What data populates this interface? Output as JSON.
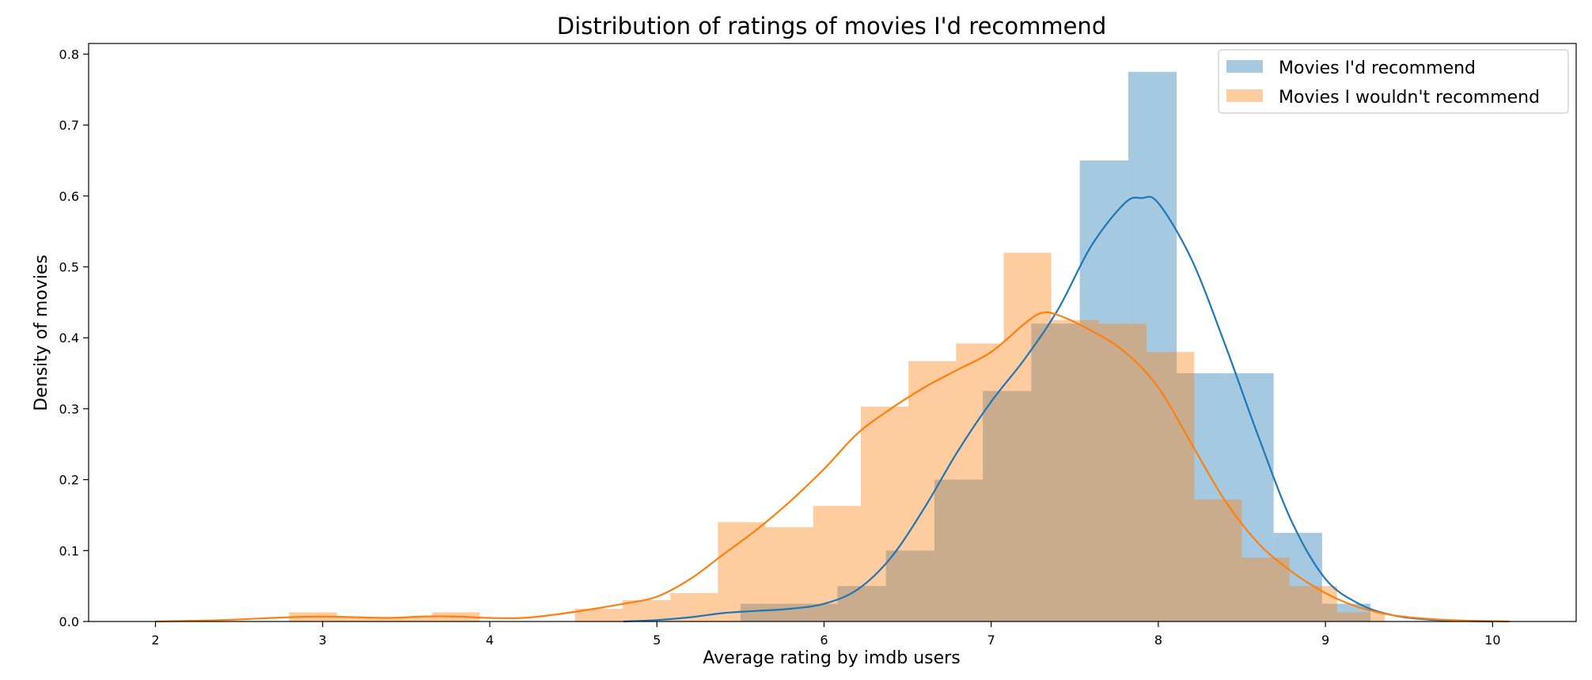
{
  "chart_data": {
    "type": "histogram-kde",
    "title": "Distribution of ratings of movies I'd recommend",
    "xlabel": "Average rating by imdb users",
    "ylabel": "Density of movies",
    "xlim": [
      1.6,
      10.5
    ],
    "ylim": [
      0,
      0.815
    ],
    "xticks": [
      "2",
      "3",
      "4",
      "5",
      "6",
      "7",
      "8",
      "9",
      "10"
    ],
    "yticks": [
      "0.0",
      "0.1",
      "0.2",
      "0.3",
      "0.4",
      "0.5",
      "0.6",
      "0.7",
      "0.8"
    ],
    "legend_position": "top-right",
    "series": [
      {
        "name": "Movies I'd recommend",
        "color": "#1f77b4",
        "bin_start": 5.5,
        "bin_width": 0.29,
        "values": [
          0.025,
          0.025,
          0.05,
          0.1,
          0.2,
          0.325,
          0.42,
          0.65,
          0.775,
          0.35,
          0.35,
          0.125,
          0.025
        ],
        "kde_x": [
          4.8,
          5.0,
          5.2,
          5.4,
          5.6,
          5.8,
          6.0,
          6.2,
          6.4,
          6.6,
          6.8,
          7.0,
          7.2,
          7.4,
          7.6,
          7.8,
          7.9,
          8.0,
          8.2,
          8.4,
          8.6,
          8.8,
          9.0,
          9.2,
          9.4,
          9.6,
          9.8,
          10.0
        ],
        "kde_y": [
          0.0,
          0.002,
          0.006,
          0.012,
          0.015,
          0.018,
          0.025,
          0.045,
          0.09,
          0.16,
          0.24,
          0.31,
          0.37,
          0.44,
          0.53,
          0.59,
          0.597,
          0.59,
          0.51,
          0.39,
          0.26,
          0.14,
          0.06,
          0.025,
          0.009,
          0.003,
          0.001,
          0.0
        ]
      },
      {
        "name": "Movies I wouldn't recommend",
        "color": "#ff7f0e",
        "bin_start": 2.8,
        "bin_width": 0.285,
        "values": [
          0.013,
          0.006,
          0.006,
          0.013,
          0.0,
          0.0,
          0.018,
          0.03,
          0.04,
          0.14,
          0.133,
          0.163,
          0.303,
          0.367,
          0.392,
          0.52,
          0.425,
          0.42,
          0.38,
          0.172,
          0.09,
          0.05,
          0.013
        ],
        "kde_x": [
          2.0,
          2.4,
          2.8,
          3.0,
          3.2,
          3.4,
          3.6,
          3.8,
          4.0,
          4.2,
          4.4,
          4.6,
          4.8,
          5.0,
          5.2,
          5.4,
          5.6,
          5.8,
          6.0,
          6.2,
          6.4,
          6.6,
          6.8,
          7.0,
          7.2,
          7.3,
          7.4,
          7.6,
          7.8,
          8.0,
          8.2,
          8.4,
          8.6,
          8.8,
          9.0,
          9.2,
          9.4,
          9.6,
          9.8,
          10.1
        ],
        "kde_y": [
          0.0,
          0.002,
          0.006,
          0.007,
          0.006,
          0.005,
          0.007,
          0.007,
          0.005,
          0.005,
          0.01,
          0.017,
          0.025,
          0.035,
          0.06,
          0.095,
          0.13,
          0.17,
          0.215,
          0.265,
          0.3,
          0.33,
          0.355,
          0.38,
          0.42,
          0.435,
          0.432,
          0.41,
          0.38,
          0.33,
          0.25,
          0.17,
          0.11,
          0.07,
          0.04,
          0.02,
          0.009,
          0.004,
          0.0015,
          0.0
        ]
      }
    ]
  }
}
